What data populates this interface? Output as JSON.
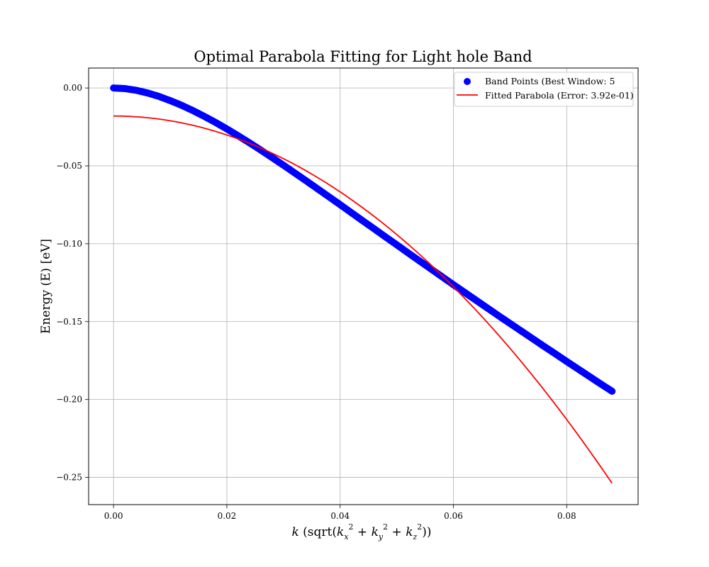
{
  "chart_data": {
    "type": "scatter",
    "title": "Optimal Parabola Fitting for Light hole Band",
    "xlabel": "k (sqrt(kx² + ky² + kz²))",
    "ylabel": "Energy (E) [eV]",
    "xlim": [
      -0.0044,
      0.0926
    ],
    "ylim": [
      -0.2675,
      0.0128
    ],
    "grid": true,
    "legend_position": "top-right",
    "x_ticks": [
      0.0,
      0.02,
      0.04,
      0.06,
      0.08
    ],
    "x_tick_labels": [
      "0.00",
      "0.02",
      "0.04",
      "0.06",
      "0.08"
    ],
    "y_ticks": [
      0.0,
      -0.05,
      -0.1,
      -0.15,
      -0.2,
      -0.25
    ],
    "y_tick_labels": [
      "0.00",
      "−0.05",
      "−0.10",
      "−0.15",
      "−0.20",
      "−0.25"
    ],
    "series": [
      {
        "name": "Band Points (Best Window: 5",
        "kind": "scatter",
        "color": "#0000ff",
        "x": [
          0.0,
          0.002,
          0.004,
          0.006,
          0.008,
          0.01,
          0.012,
          0.014,
          0.016,
          0.018,
          0.02,
          0.022,
          0.024,
          0.026,
          0.028,
          0.03,
          0.032,
          0.034,
          0.036,
          0.038,
          0.04,
          0.042,
          0.044,
          0.046,
          0.048,
          0.05,
          0.052,
          0.054,
          0.056,
          0.058,
          0.06,
          0.062,
          0.064,
          0.066,
          0.068,
          0.07,
          0.072,
          0.074,
          0.076,
          0.078,
          0.08,
          0.082,
          0.084,
          0.086,
          0.088
        ],
        "y": [
          0.0,
          -0.0004,
          -0.0015,
          -0.0032,
          -0.0054,
          -0.0081,
          -0.0111,
          -0.0145,
          -0.0182,
          -0.0221,
          -0.0263,
          -0.0307,
          -0.0352,
          -0.0399,
          -0.0447,
          -0.0496,
          -0.0546,
          -0.0596,
          -0.0647,
          -0.0698,
          -0.0749,
          -0.0801,
          -0.0853,
          -0.0904,
          -0.0956,
          -0.1007,
          -0.1059,
          -0.111,
          -0.1161,
          -0.1212,
          -0.1263,
          -0.1313,
          -0.1363,
          -0.1413,
          -0.1463,
          -0.1512,
          -0.1561,
          -0.161,
          -0.1659,
          -0.1707,
          -0.1756,
          -0.1804,
          -0.1852,
          -0.19,
          -0.1947
        ]
      },
      {
        "name": "Fitted Parabola (Error: 3.92e-01)",
        "kind": "line",
        "color": "#ff0000",
        "curve": {
          "a": -30.45,
          "c": -0.018
        },
        "x_range": [
          0.0,
          0.088
        ]
      }
    ]
  }
}
